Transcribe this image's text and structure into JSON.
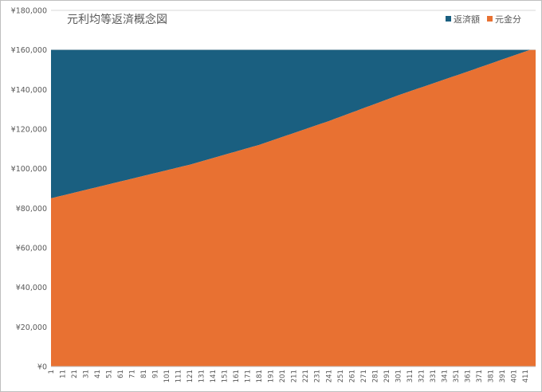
{
  "chart_data": {
    "type": "area",
    "title": "元利均等返済概念図",
    "xlabel": "",
    "ylabel": "",
    "ylim": [
      0,
      180000
    ],
    "yticks": [
      "¥0",
      "¥20,000",
      "¥40,000",
      "¥60,000",
      "¥80,000",
      "¥100,000",
      "¥120,000",
      "¥140,000",
      "¥160,000",
      "¥180,000"
    ],
    "x_tick_labels": [
      "1",
      "11",
      "21",
      "31",
      "41",
      "51",
      "61",
      "71",
      "81",
      "91",
      "101",
      "111",
      "121",
      "131",
      "141",
      "151",
      "161",
      "171",
      "181",
      "191",
      "201",
      "211",
      "221",
      "231",
      "241",
      "251",
      "261",
      "271",
      "281",
      "291",
      "301",
      "311",
      "321",
      "331",
      "341",
      "351",
      "361",
      "371",
      "381",
      "391",
      "401",
      "411"
    ],
    "x_range": [
      1,
      420
    ],
    "legend_position": "top-right",
    "grid": true,
    "stacked": true,
    "series": [
      {
        "name": "返済額",
        "color": "#1a5f80",
        "constant_total": 160000
      },
      {
        "name": "元金分",
        "color": "#e87132",
        "x": [
          1,
          61,
          121,
          181,
          241,
          301,
          361,
          420
        ],
        "values": [
          85000,
          93500,
          102000,
          112000,
          124000,
          137000,
          149000,
          161000
        ]
      }
    ]
  }
}
